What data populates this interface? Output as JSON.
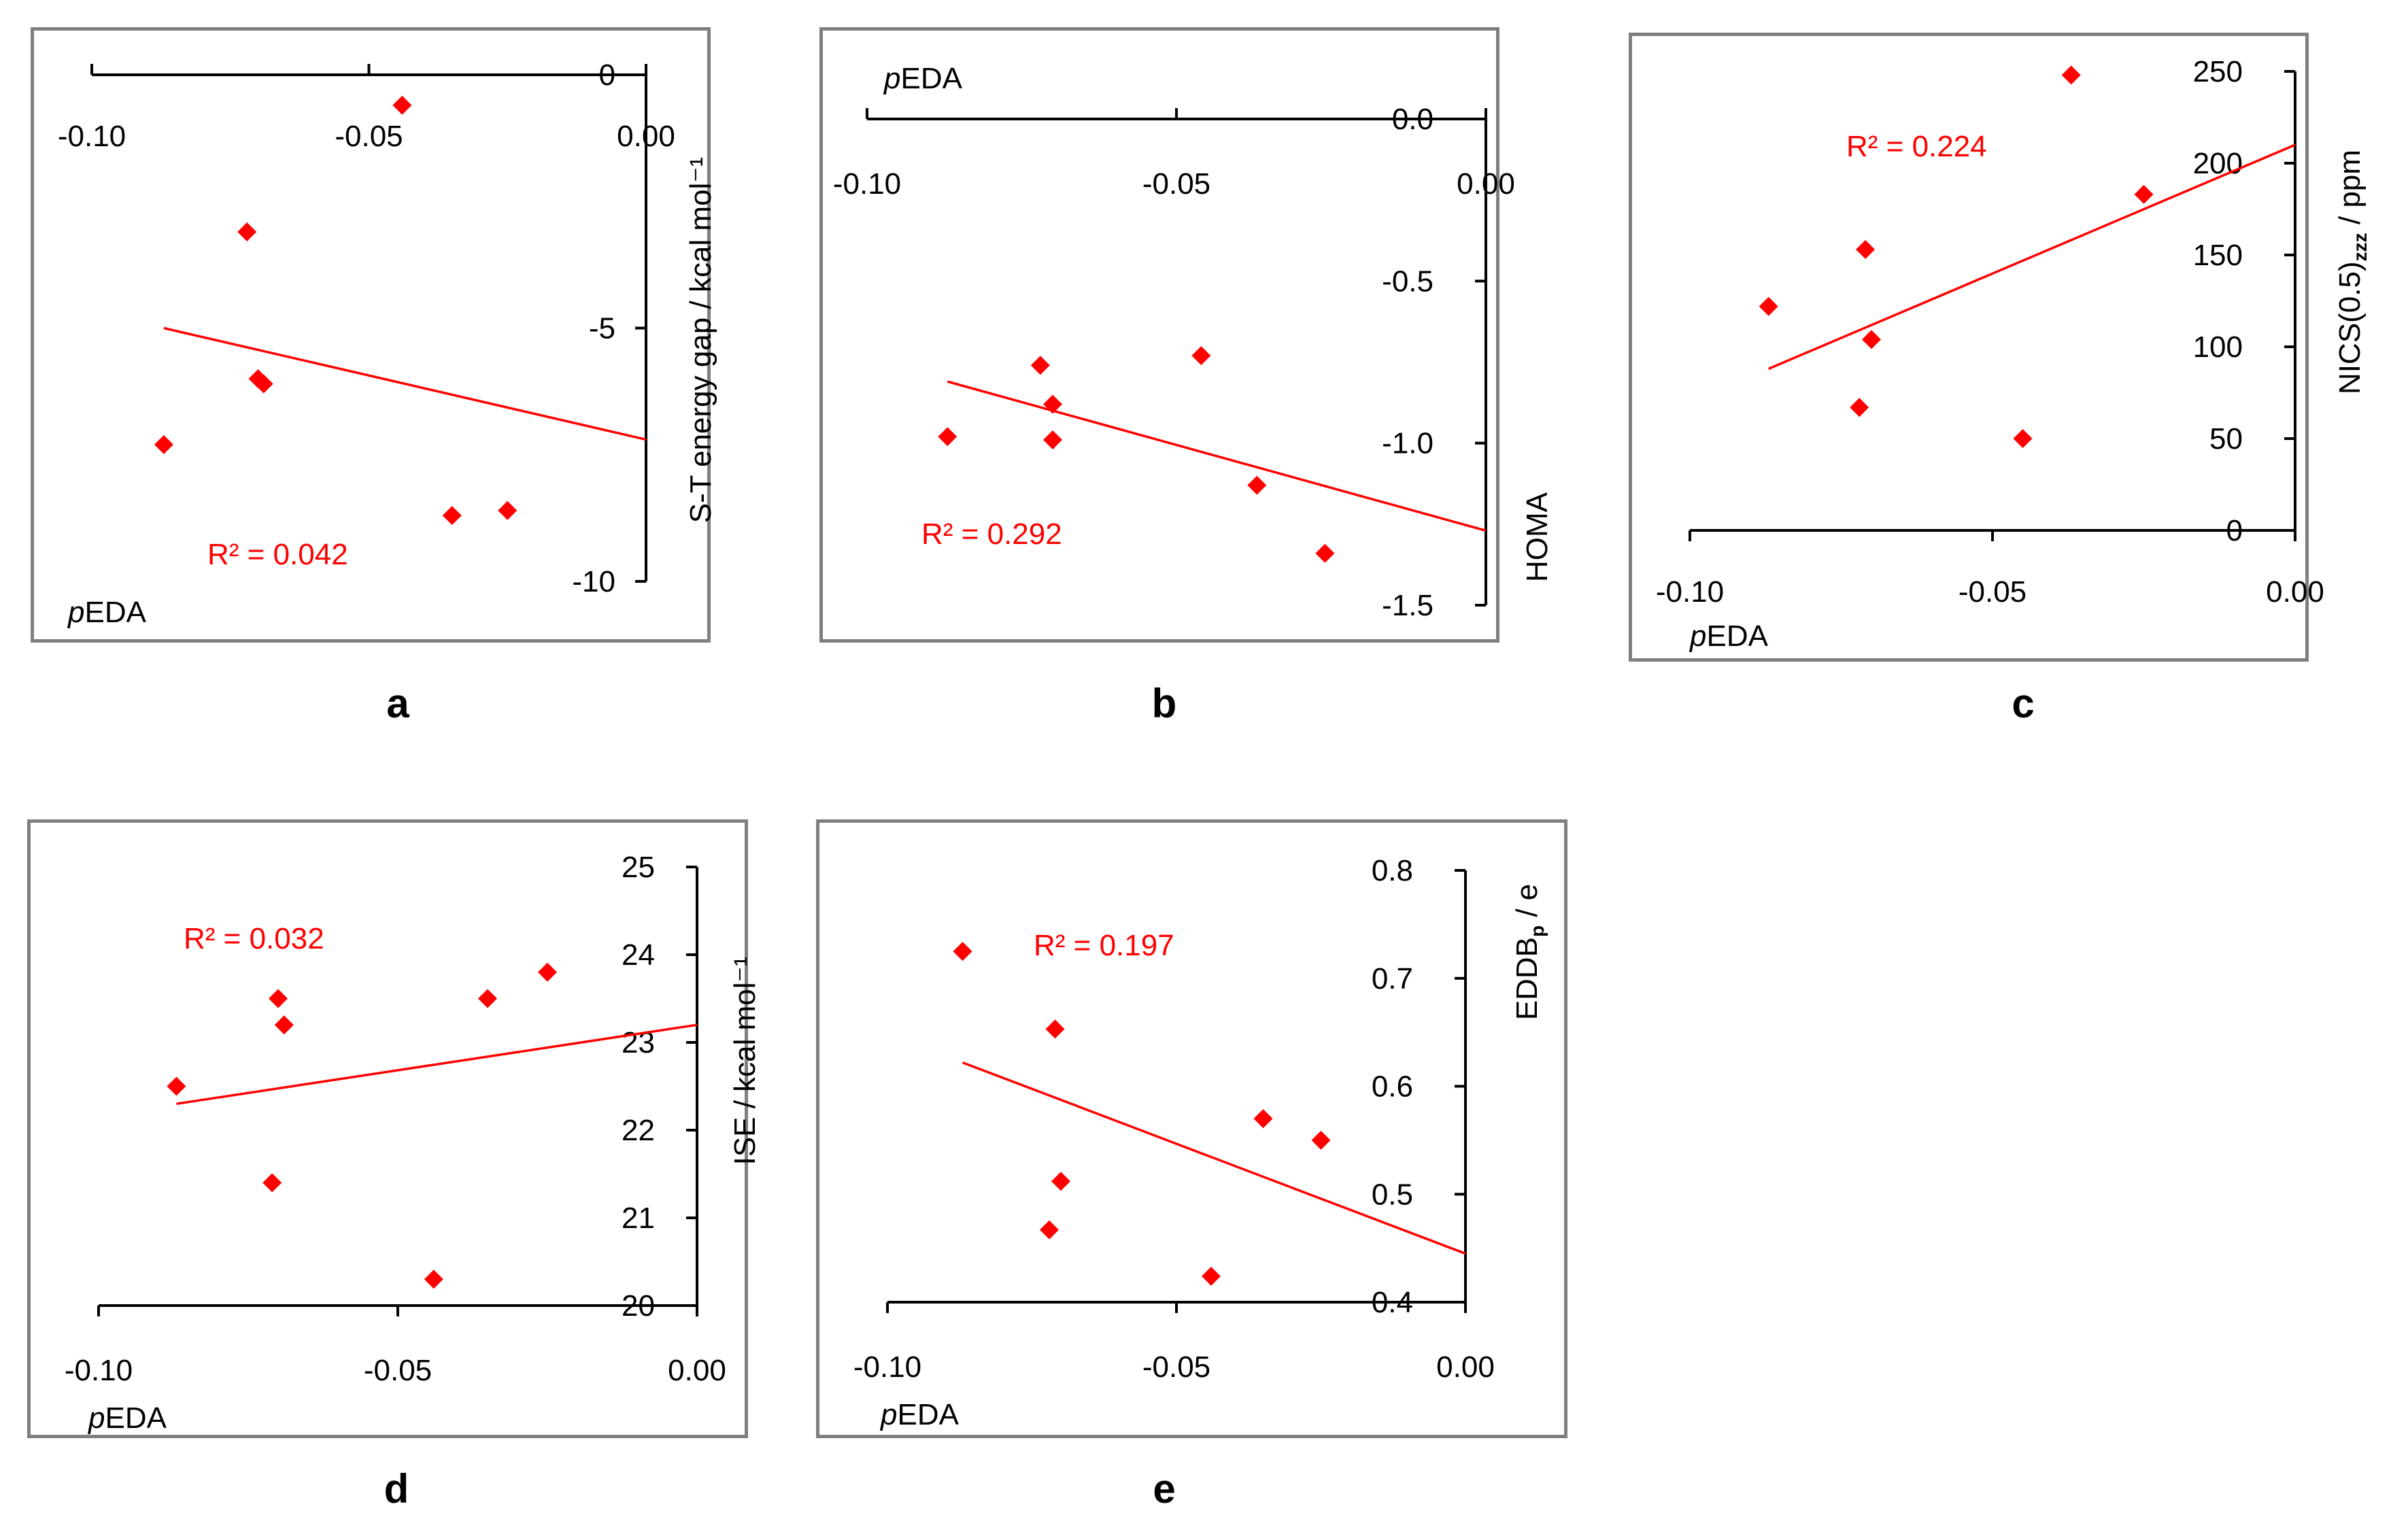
{
  "chart_data": [
    {
      "type": "scatter",
      "panel_label": "a",
      "xlabel_prefix": "p",
      "xlabel_rest": "EDA",
      "ylabel": "S-T energy gap / kcal mol⁻¹",
      "r2_label": "R² = 0.042",
      "xlim": [
        -0.1,
        0.0
      ],
      "ylim": [
        -10,
        0
      ],
      "x_ticks": [
        "-0.10",
        "-0.05",
        "0.00"
      ],
      "x_tick_values": [
        -0.1,
        -0.05,
        0.0
      ],
      "y_ticks": [
        "0",
        "-5",
        "-10"
      ],
      "y_tick_values": [
        0,
        -5,
        -10
      ],
      "x": [
        -0.087,
        -0.072,
        -0.07,
        -0.069,
        -0.044,
        -0.035,
        -0.025
      ],
      "y": [
        -7.3,
        -3.1,
        -6.0,
        -6.1,
        -0.6,
        -8.7,
        -8.6
      ],
      "trendline": [
        [
          -0.087,
          -5.0
        ],
        [
          0.0,
          -7.2
        ]
      ]
    },
    {
      "type": "scatter",
      "panel_label": "b",
      "xlabel_prefix": "p",
      "xlabel_rest": "EDA",
      "ylabel": "HOMA",
      "r2_label": "R² = 0.292",
      "xlim": [
        -0.1,
        0.0
      ],
      "ylim": [
        -1.5,
        0.0
      ],
      "x_ticks": [
        "-0.10",
        "-0.05",
        "0.00"
      ],
      "x_tick_values": [
        -0.1,
        -0.05,
        0.0
      ],
      "y_ticks": [
        "0.0",
        "-0.5",
        "-1.0",
        "-1.5"
      ],
      "y_tick_values": [
        0.0,
        -0.5,
        -1.0,
        -1.5
      ],
      "x": [
        -0.087,
        -0.072,
        -0.07,
        -0.07,
        -0.046,
        -0.037,
        -0.026
      ],
      "y": [
        -0.98,
        -0.76,
        -0.88,
        -0.99,
        -0.73,
        -1.13,
        -1.34
      ],
      "trendline": [
        [
          -0.087,
          -0.81
        ],
        [
          0.0,
          -1.27
        ]
      ]
    },
    {
      "type": "scatter",
      "panel_label": "c",
      "xlabel_prefix": "p",
      "xlabel_rest": "EDA",
      "ylabel_main": "NICS(0.5)",
      "ylabel_sub": "zzz",
      "ylabel_tail": " / ppm",
      "r2_label": "R² = 0.224",
      "xlim": [
        -0.1,
        0.0
      ],
      "ylim": [
        0,
        250
      ],
      "x_ticks": [
        "-0.10",
        "-0.05",
        "0.00"
      ],
      "x_tick_values": [
        -0.1,
        -0.05,
        0.0
      ],
      "y_ticks": [
        "250",
        "200",
        "150",
        "100",
        "50",
        "0"
      ],
      "y_tick_values": [
        250,
        200,
        150,
        100,
        50,
        0
      ],
      "x": [
        -0.087,
        -0.072,
        -0.071,
        -0.07,
        -0.045,
        -0.037,
        -0.025
      ],
      "y": [
        122,
        67,
        153,
        104,
        50,
        248,
        183
      ],
      "trendline": [
        [
          -0.087,
          88
        ],
        [
          0.0,
          210
        ]
      ]
    },
    {
      "type": "scatter",
      "panel_label": "d",
      "xlabel_prefix": "p",
      "xlabel_rest": "EDA",
      "ylabel": "ISE / kcal mol⁻¹",
      "r2_label": "R² = 0.032",
      "xlim": [
        -0.1,
        0.0
      ],
      "ylim": [
        20,
        25
      ],
      "x_ticks": [
        "-0.10",
        "-0.05",
        "0.00"
      ],
      "x_tick_values": [
        -0.1,
        -0.05,
        0.0
      ],
      "y_ticks": [
        "25",
        "24",
        "23",
        "22",
        "21",
        "20"
      ],
      "y_tick_values": [
        25,
        24,
        23,
        22,
        21,
        20
      ],
      "x": [
        -0.087,
        -0.071,
        -0.07,
        -0.069,
        -0.044,
        -0.035,
        -0.025
      ],
      "y": [
        22.5,
        21.4,
        23.5,
        23.2,
        20.3,
        23.5,
        23.8
      ],
      "trendline": [
        [
          -0.087,
          22.3
        ],
        [
          0.0,
          23.2
        ]
      ]
    },
    {
      "type": "scatter",
      "panel_label": "e",
      "xlabel_prefix": "p",
      "xlabel_rest": "EDA",
      "ylabel_main": "EDDB",
      "ylabel_sub": "p",
      "ylabel_tail": " / e",
      "r2_label": "R² = 0.197",
      "xlim": [
        -0.1,
        0.0
      ],
      "ylim": [
        0.4,
        0.8
      ],
      "x_ticks": [
        "-0.10",
        "-0.05",
        "0.00"
      ],
      "x_tick_values": [
        -0.1,
        -0.05,
        0.0
      ],
      "y_ticks": [
        "0.8",
        "0.7",
        "0.6",
        "0.5",
        "0.4"
      ],
      "y_tick_values": [
        0.8,
        0.7,
        0.6,
        0.5,
        0.4
      ],
      "x": [
        -0.087,
        -0.072,
        -0.071,
        -0.07,
        -0.044,
        -0.035,
        -0.025
      ],
      "y": [
        0.725,
        0.467,
        0.653,
        0.512,
        0.424,
        0.57,
        0.55
      ],
      "trendline": [
        [
          -0.087,
          0.622
        ],
        [
          0.0,
          0.445
        ]
      ]
    }
  ],
  "colors": {
    "marker": "#ff0000",
    "trendline": "#ff0000",
    "r2_text": "#ff0000",
    "axis": "#000000",
    "frame": "#7f7f7f"
  }
}
